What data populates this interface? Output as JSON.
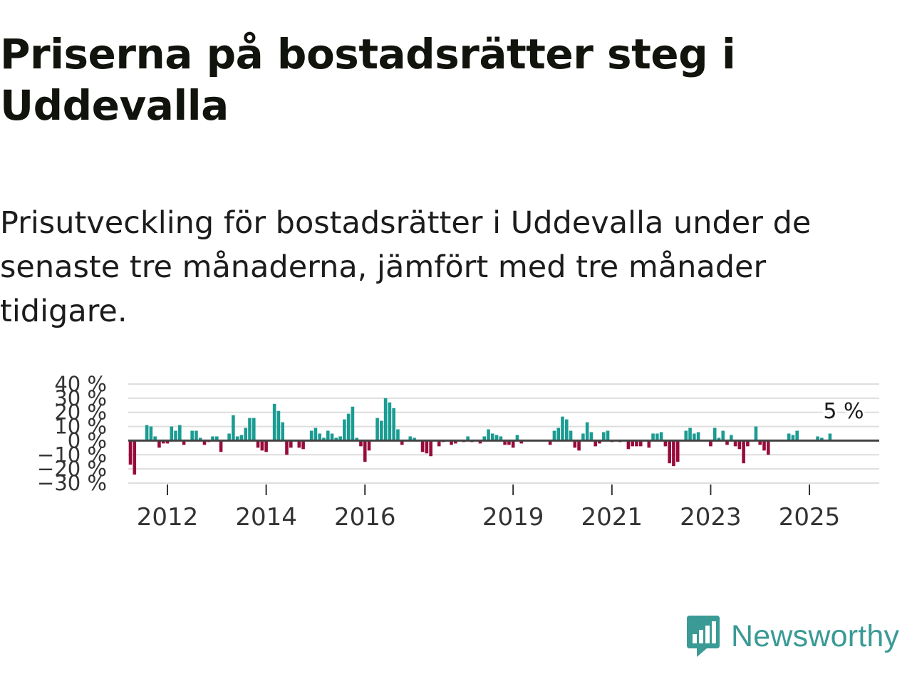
{
  "title": "Priserna på bostadsrätter steg i Uddevalla",
  "subtitle": "Prisutveckling för bostadsrätter i Uddevalla under de senaste tre månaderna, jämfört med tre månader tidigare.",
  "brand": "Newsworthy",
  "colors": {
    "positive": "#1a9c93",
    "negative": "#970b3b",
    "brand": "#3a9a95",
    "grid": "#dedede",
    "zero": "#444444"
  },
  "chart_data": {
    "type": "bar",
    "title": "",
    "xlabel": "",
    "ylabel": "",
    "y_ticks": [
      "40 %",
      "30 %",
      "20 %",
      "10 %",
      "0 %",
      "−10 %",
      "−20 %",
      "−30 %"
    ],
    "y_tick_values": [
      40,
      30,
      20,
      10,
      0,
      -10,
      -20,
      -30
    ],
    "ylim": [
      -30,
      40
    ],
    "x_ticks": [
      "2012",
      "2014",
      "2016",
      "2019",
      "2021",
      "2023",
      "2025"
    ],
    "x_tick_values": [
      2012,
      2014,
      2016,
      2019,
      2021,
      2023,
      2025
    ],
    "x_start": 2011.25,
    "x_step_months": 1,
    "last_label": "5 %",
    "values": [
      -17,
      -24,
      0,
      0,
      11,
      10,
      3,
      -5,
      -2,
      -2,
      10,
      7,
      11,
      -3,
      0,
      7,
      7,
      2,
      -3,
      -1,
      3,
      3,
      -8,
      0,
      5,
      18,
      3,
      4,
      9,
      16,
      16,
      -5,
      -7,
      -8,
      0,
      26,
      21,
      13,
      -10,
      -5,
      0,
      -5,
      -6,
      0,
      7,
      9,
      5,
      2,
      7,
      5,
      2,
      3,
      15,
      19,
      24,
      2,
      -4,
      -15,
      -7,
      0,
      16,
      14,
      30,
      27,
      23,
      8,
      -3,
      0,
      3,
      2,
      0,
      -8,
      -9,
      -11,
      0,
      -4,
      -1,
      0,
      -3,
      -2,
      0,
      -1,
      3,
      -1,
      0,
      -2,
      3,
      8,
      5,
      4,
      3,
      -3,
      -3,
      -5,
      4,
      -2,
      0,
      0,
      0,
      0,
      0,
      0,
      -3,
      7,
      9,
      17,
      15,
      7,
      -5,
      -7,
      5,
      13,
      6,
      -4,
      -2,
      6,
      7,
      -1,
      0,
      -1,
      0,
      -6,
      -4,
      -4,
      -4,
      0,
      -5,
      5,
      5,
      6,
      -4,
      -16,
      -18,
      -15,
      0,
      7,
      9,
      5,
      6,
      0,
      0,
      -4,
      9,
      2,
      7,
      -3,
      4,
      -4,
      -6,
      -16,
      -4,
      0,
      10,
      -3,
      -7,
      -10,
      0,
      0,
      0,
      0,
      5,
      4,
      7,
      0,
      0,
      0,
      0,
      3,
      2,
      0,
      5
    ]
  }
}
